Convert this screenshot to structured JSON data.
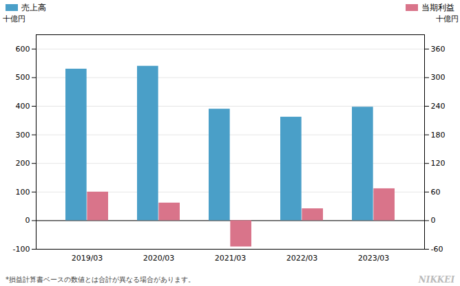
{
  "chart_data": {
    "type": "bar",
    "categories": [
      "2019/03",
      "2020/03",
      "2021/03",
      "2022/03",
      "2023/03"
    ],
    "series": [
      {
        "name": "売上高",
        "color": "#4A9FC8",
        "values": [
          530,
          540,
          390,
          362,
          397
        ]
      },
      {
        "name": "当期利益",
        "color": "#D9748A",
        "values": [
          60,
          37,
          -55,
          25,
          67
        ],
        "axis": "y2"
      }
    ],
    "ylabel": "十億円",
    "y2label": "十億円",
    "ylim": [
      -100,
      650
    ],
    "yticks": [
      -100,
      0,
      100,
      200,
      300,
      400,
      500,
      600
    ],
    "y2lim": [
      -60,
      390
    ],
    "y2ticks": [
      -60,
      0,
      60,
      120,
      180,
      240,
      300,
      360
    ],
    "grid": true,
    "legend": "top",
    "annotations": [
      "*損益計算書ベースの数値とは合計が異なる場合があります。",
      "NIKKEI"
    ]
  }
}
